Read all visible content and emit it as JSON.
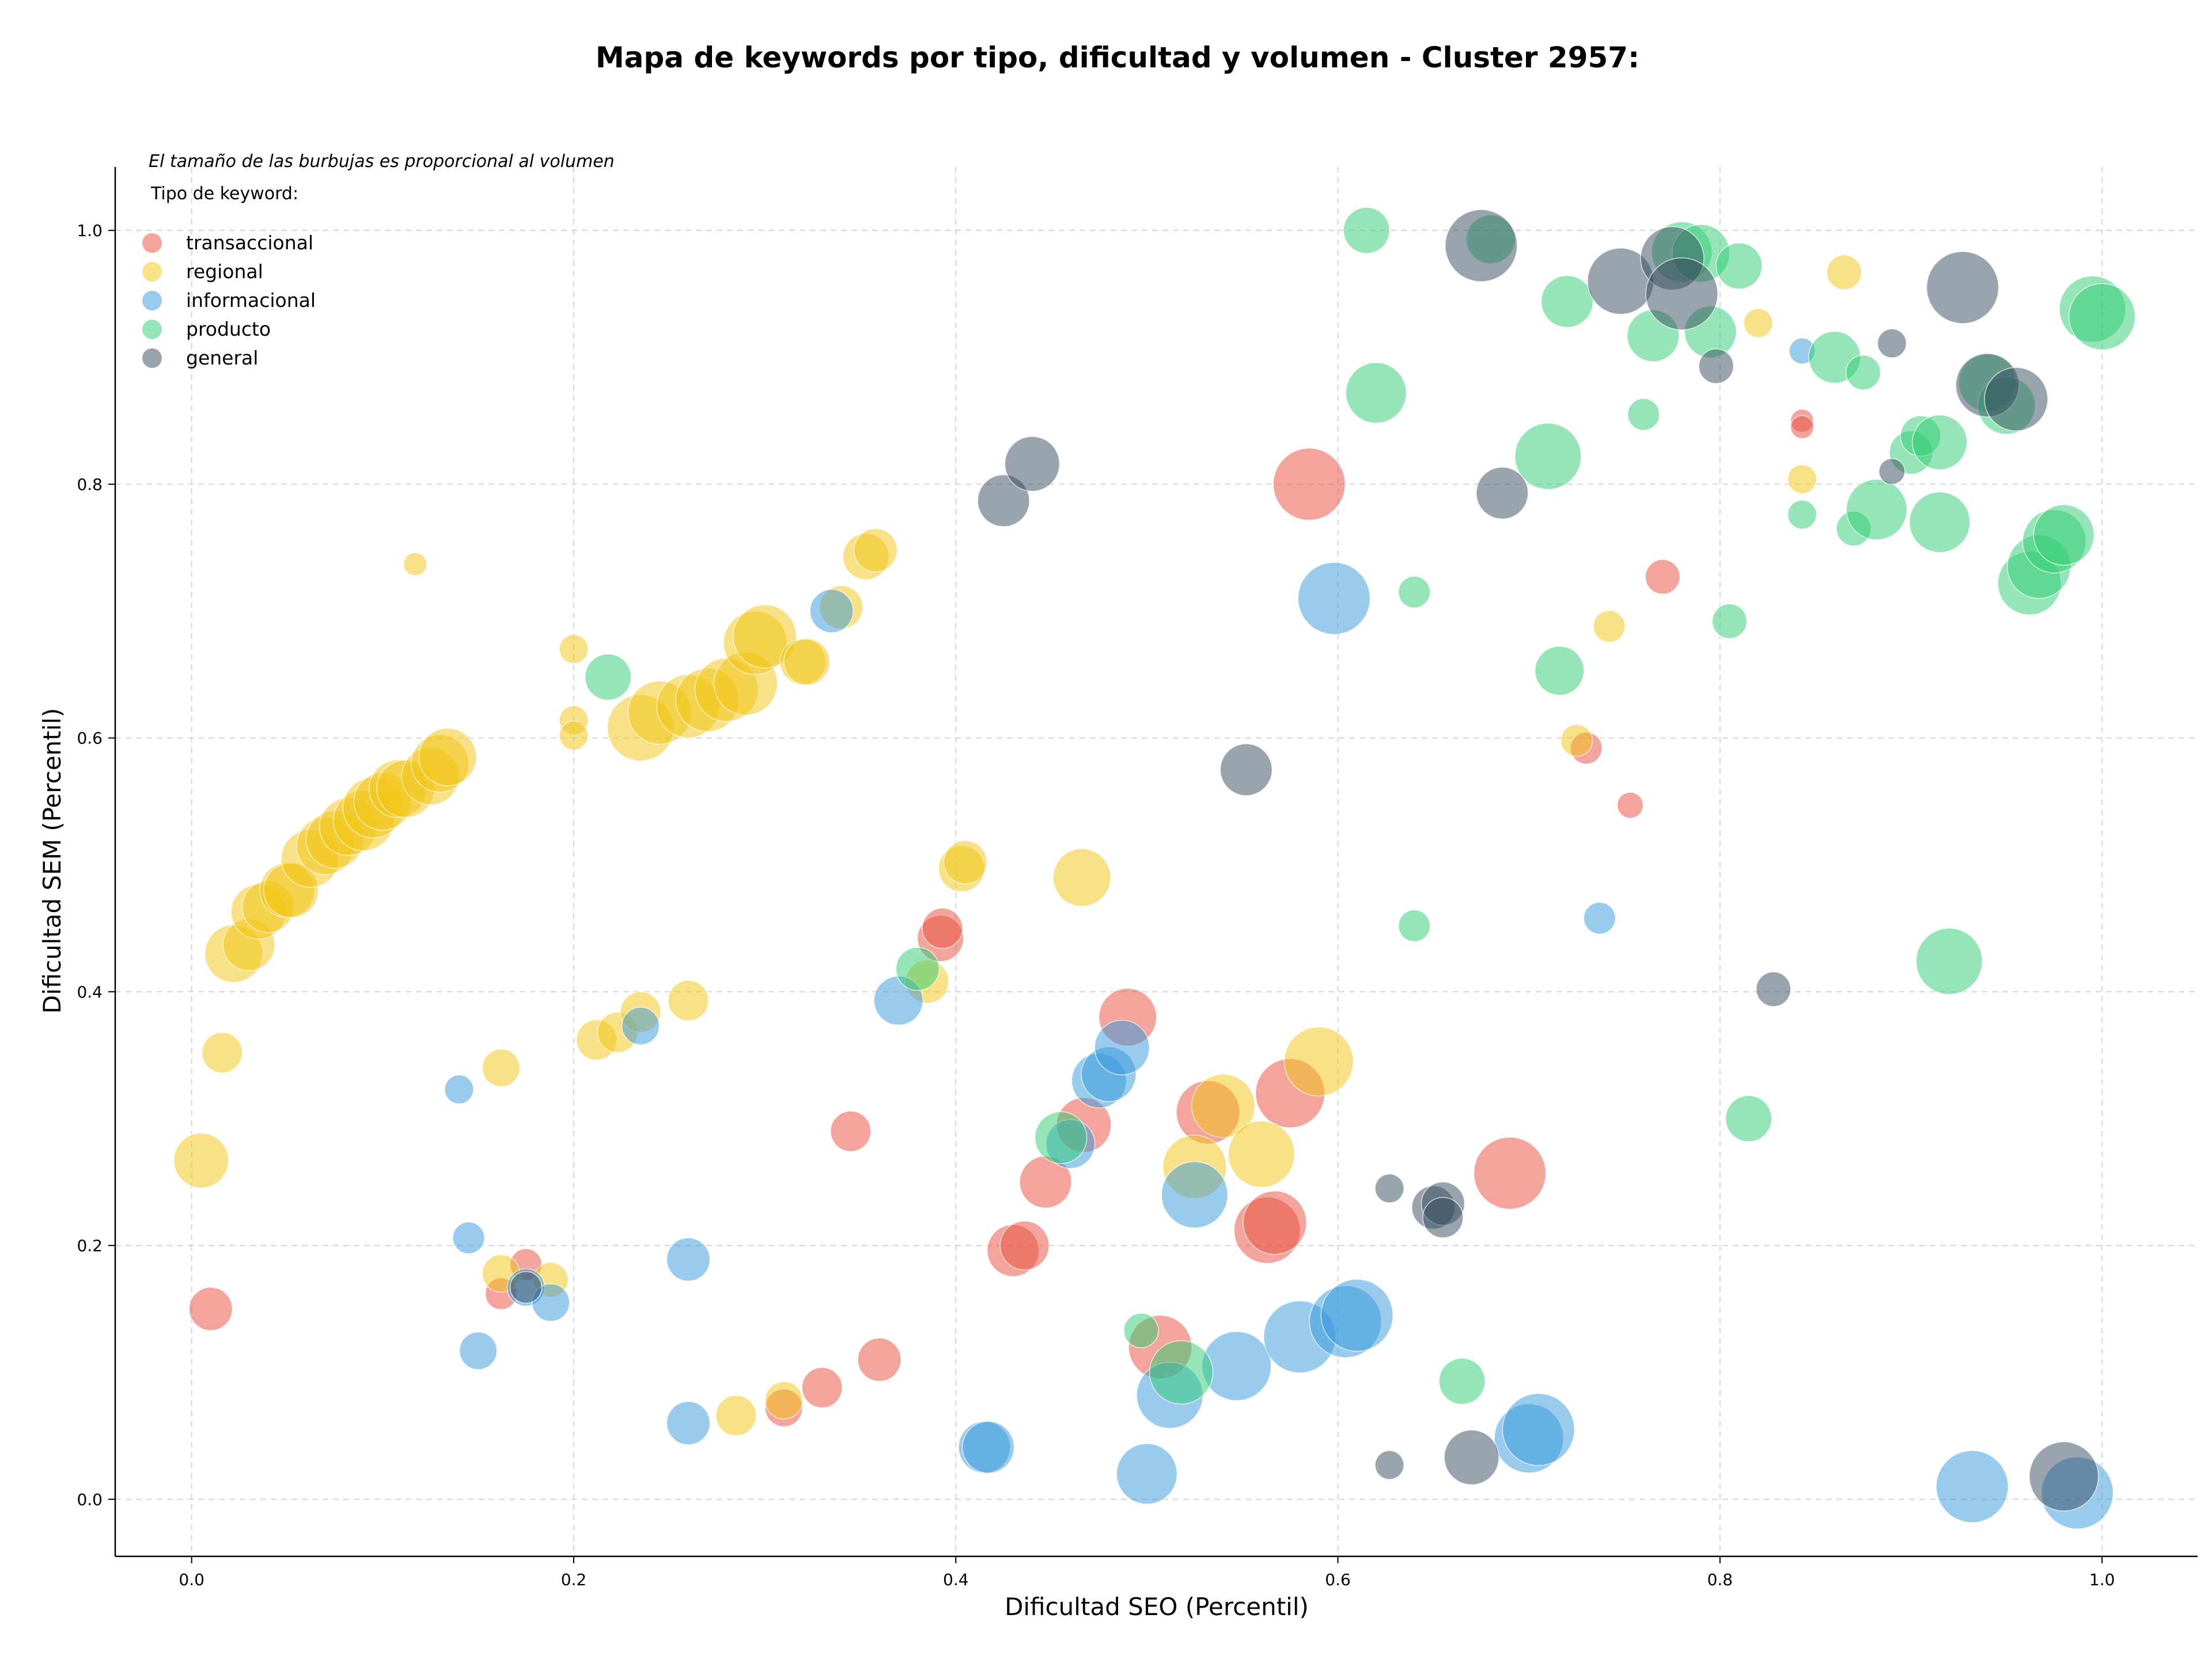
{
  "chart_data": {
    "type": "scatter",
    "title": "Mapa de keywords por tipo, dificultad y volumen - Cluster 2957:",
    "xlabel": "Dificultad SEO (Percentil)",
    "ylabel": "Dificultad SEM (Percentil)",
    "xlim": [
      -0.04,
      1.05
    ],
    "ylim": [
      -0.045,
      1.05
    ],
    "xticks": [
      "0.0",
      "0.2",
      "0.4",
      "0.6",
      "0.8",
      "1.0"
    ],
    "yticks": [
      "0.0",
      "0.2",
      "0.4",
      "0.6",
      "0.8",
      "1.0"
    ],
    "grid": true,
    "legend_note": "El tamaño de las burbujas es proporcional al volumen",
    "legend_title": "Tipo de keyword:",
    "legend_placement": "top-left",
    "series": [
      {
        "name": "transaccional",
        "color": "#e74c3c",
        "points": [
          [
            0.01,
            0.15,
            30
          ],
          [
            0.162,
            0.162,
            22
          ],
          [
            0.175,
            0.185,
            22
          ],
          [
            0.345,
            0.29,
            28
          ],
          [
            0.36,
            0.11,
            30
          ],
          [
            0.33,
            0.088,
            28
          ],
          [
            0.31,
            0.072,
            26
          ],
          [
            0.392,
            0.442,
            32
          ],
          [
            0.393,
            0.45,
            28
          ],
          [
            0.43,
            0.196,
            36
          ],
          [
            0.436,
            0.2,
            34
          ],
          [
            0.447,
            0.25,
            36
          ],
          [
            0.467,
            0.295,
            38
          ],
          [
            0.49,
            0.38,
            40
          ],
          [
            0.507,
            0.12,
            44
          ],
          [
            0.532,
            0.305,
            44
          ],
          [
            0.563,
            0.212,
            46
          ],
          [
            0.567,
            0.218,
            44
          ],
          [
            0.575,
            0.32,
            48
          ],
          [
            0.585,
            0.8,
            50
          ],
          [
            0.69,
            0.257,
            50
          ],
          [
            0.73,
            0.592,
            22
          ],
          [
            0.753,
            0.547,
            18
          ],
          [
            0.77,
            0.727,
            24
          ],
          [
            0.843,
            0.85,
            16
          ],
          [
            0.843,
            0.845,
            16
          ]
        ]
      },
      {
        "name": "regional",
        "color": "#f1c40f",
        "points": [
          [
            0.005,
            0.267,
            38
          ],
          [
            0.016,
            0.352,
            28
          ],
          [
            0.022,
            0.43,
            40
          ],
          [
            0.03,
            0.437,
            36
          ],
          [
            0.035,
            0.463,
            38
          ],
          [
            0.04,
            0.467,
            36
          ],
          [
            0.05,
            0.48,
            38
          ],
          [
            0.052,
            0.48,
            38
          ],
          [
            0.062,
            0.505,
            40
          ],
          [
            0.07,
            0.515,
            40
          ],
          [
            0.075,
            0.52,
            40
          ],
          [
            0.082,
            0.53,
            40
          ],
          [
            0.09,
            0.535,
            42
          ],
          [
            0.095,
            0.545,
            42
          ],
          [
            0.1,
            0.55,
            40
          ],
          [
            0.108,
            0.56,
            40
          ],
          [
            0.112,
            0.56,
            40
          ],
          [
            0.117,
            0.737,
            16
          ],
          [
            0.125,
            0.57,
            40
          ],
          [
            0.13,
            0.58,
            40
          ],
          [
            0.134,
            0.585,
            40
          ],
          [
            0.162,
            0.34,
            26
          ],
          [
            0.162,
            0.178,
            26
          ],
          [
            0.188,
            0.173,
            24
          ],
          [
            0.2,
            0.67,
            20
          ],
          [
            0.2,
            0.614,
            20
          ],
          [
            0.2,
            0.602,
            20
          ],
          [
            0.212,
            0.362,
            28
          ],
          [
            0.223,
            0.368,
            28
          ],
          [
            0.235,
            0.384,
            28
          ],
          [
            0.235,
            0.608,
            46
          ],
          [
            0.245,
            0.62,
            44
          ],
          [
            0.26,
            0.625,
            44
          ],
          [
            0.27,
            0.63,
            44
          ],
          [
            0.28,
            0.638,
            44
          ],
          [
            0.29,
            0.643,
            44
          ],
          [
            0.295,
            0.675,
            44
          ],
          [
            0.3,
            0.68,
            44
          ],
          [
            0.32,
            0.66,
            32
          ],
          [
            0.322,
            0.66,
            32
          ],
          [
            0.34,
            0.703,
            30
          ],
          [
            0.353,
            0.743,
            32
          ],
          [
            0.358,
            0.748,
            30
          ],
          [
            0.26,
            0.393,
            28
          ],
          [
            0.285,
            0.066,
            28
          ],
          [
            0.31,
            0.078,
            26
          ],
          [
            0.385,
            0.408,
            30
          ],
          [
            0.403,
            0.497,
            32
          ],
          [
            0.405,
            0.502,
            30
          ],
          [
            0.466,
            0.49,
            40
          ],
          [
            0.525,
            0.262,
            44
          ],
          [
            0.54,
            0.31,
            44
          ],
          [
            0.56,
            0.272,
            46
          ],
          [
            0.59,
            0.345,
            48
          ],
          [
            0.725,
            0.598,
            22
          ],
          [
            0.742,
            0.688,
            22
          ],
          [
            0.82,
            0.927,
            20
          ],
          [
            0.843,
            0.804,
            20
          ],
          [
            0.865,
            0.967,
            24
          ]
        ]
      },
      {
        "name": "informacional",
        "color": "#3498db",
        "points": [
          [
            0.14,
            0.323,
            20
          ],
          [
            0.145,
            0.206,
            22
          ],
          [
            0.15,
            0.117,
            26
          ],
          [
            0.175,
            0.167,
            26
          ],
          [
            0.188,
            0.155,
            26
          ],
          [
            0.235,
            0.373,
            26
          ],
          [
            0.26,
            0.189,
            30
          ],
          [
            0.26,
            0.06,
            30
          ],
          [
            0.335,
            0.7,
            30
          ],
          [
            0.37,
            0.393,
            34
          ],
          [
            0.415,
            0.041,
            36
          ],
          [
            0.417,
            0.041,
            36
          ],
          [
            0.46,
            0.28,
            34
          ],
          [
            0.475,
            0.33,
            38
          ],
          [
            0.48,
            0.335,
            38
          ],
          [
            0.487,
            0.356,
            38
          ],
          [
            0.5,
            0.02,
            42
          ],
          [
            0.512,
            0.082,
            46
          ],
          [
            0.525,
            0.24,
            46
          ],
          [
            0.547,
            0.105,
            48
          ],
          [
            0.58,
            0.128,
            50
          ],
          [
            0.598,
            0.71,
            50
          ],
          [
            0.604,
            0.14,
            50
          ],
          [
            0.61,
            0.145,
            50
          ],
          [
            0.7,
            0.048,
            48
          ],
          [
            0.705,
            0.055,
            50
          ],
          [
            0.737,
            0.458,
            22
          ],
          [
            0.843,
            0.905,
            18
          ],
          [
            0.932,
            0.01,
            50
          ],
          [
            0.987,
            0.005,
            50
          ]
        ]
      },
      {
        "name": "producto",
        "color": "#2ecc71",
        "points": [
          [
            0.218,
            0.648,
            32
          ],
          [
            0.38,
            0.418,
            30
          ],
          [
            0.455,
            0.285,
            36
          ],
          [
            0.497,
            0.133,
            24
          ],
          [
            0.518,
            0.1,
            44
          ],
          [
            0.615,
            1.0,
            32
          ],
          [
            0.62,
            0.872,
            42
          ],
          [
            0.64,
            0.715,
            22
          ],
          [
            0.64,
            0.452,
            22
          ],
          [
            0.665,
            0.093,
            32
          ],
          [
            0.68,
            0.993,
            34
          ],
          [
            0.71,
            0.822,
            46
          ],
          [
            0.716,
            0.653,
            34
          ],
          [
            0.72,
            0.944,
            36
          ],
          [
            0.76,
            0.855,
            22
          ],
          [
            0.765,
            0.917,
            36
          ],
          [
            0.78,
            0.983,
            42
          ],
          [
            0.79,
            0.982,
            40
          ],
          [
            0.795,
            0.92,
            36
          ],
          [
            0.81,
            0.972,
            32
          ],
          [
            0.805,
            0.692,
            24
          ],
          [
            0.815,
            0.3,
            32
          ],
          [
            0.843,
            0.776,
            20
          ],
          [
            0.86,
            0.9,
            36
          ],
          [
            0.87,
            0.765,
            24
          ],
          [
            0.875,
            0.888,
            24
          ],
          [
            0.882,
            0.78,
            42
          ],
          [
            0.9,
            0.825,
            30
          ],
          [
            0.905,
            0.838,
            28
          ],
          [
            0.915,
            0.833,
            38
          ],
          [
            0.915,
            0.77,
            42
          ],
          [
            0.92,
            0.424,
            46
          ],
          [
            0.94,
            0.88,
            40
          ],
          [
            0.95,
            0.862,
            40
          ],
          [
            0.962,
            0.722,
            44
          ],
          [
            0.967,
            0.735,
            44
          ],
          [
            0.975,
            0.755,
            44
          ],
          [
            0.98,
            0.76,
            42
          ],
          [
            0.995,
            0.938,
            46
          ],
          [
            1.0,
            0.932,
            46
          ]
        ]
      },
      {
        "name": "general",
        "color": "#34495e",
        "points": [
          [
            0.175,
            0.167,
            22
          ],
          [
            0.425,
            0.787,
            36
          ],
          [
            0.44,
            0.816,
            38
          ],
          [
            0.552,
            0.575,
            36
          ],
          [
            0.627,
            0.245,
            20
          ],
          [
            0.627,
            0.027,
            20
          ],
          [
            0.65,
            0.23,
            30
          ],
          [
            0.655,
            0.233,
            30
          ],
          [
            0.655,
            0.222,
            28
          ],
          [
            0.67,
            0.033,
            38
          ],
          [
            0.675,
            0.988,
            50
          ],
          [
            0.686,
            0.793,
            36
          ],
          [
            0.748,
            0.96,
            46
          ],
          [
            0.775,
            0.978,
            44
          ],
          [
            0.78,
            0.95,
            50
          ],
          [
            0.798,
            0.893,
            24
          ],
          [
            0.828,
            0.402,
            24
          ],
          [
            0.89,
            0.81,
            18
          ],
          [
            0.89,
            0.911,
            20
          ],
          [
            0.927,
            0.955,
            50
          ],
          [
            0.94,
            0.878,
            44
          ],
          [
            0.955,
            0.867,
            44
          ],
          [
            0.98,
            0.018,
            48
          ]
        ]
      }
    ]
  }
}
